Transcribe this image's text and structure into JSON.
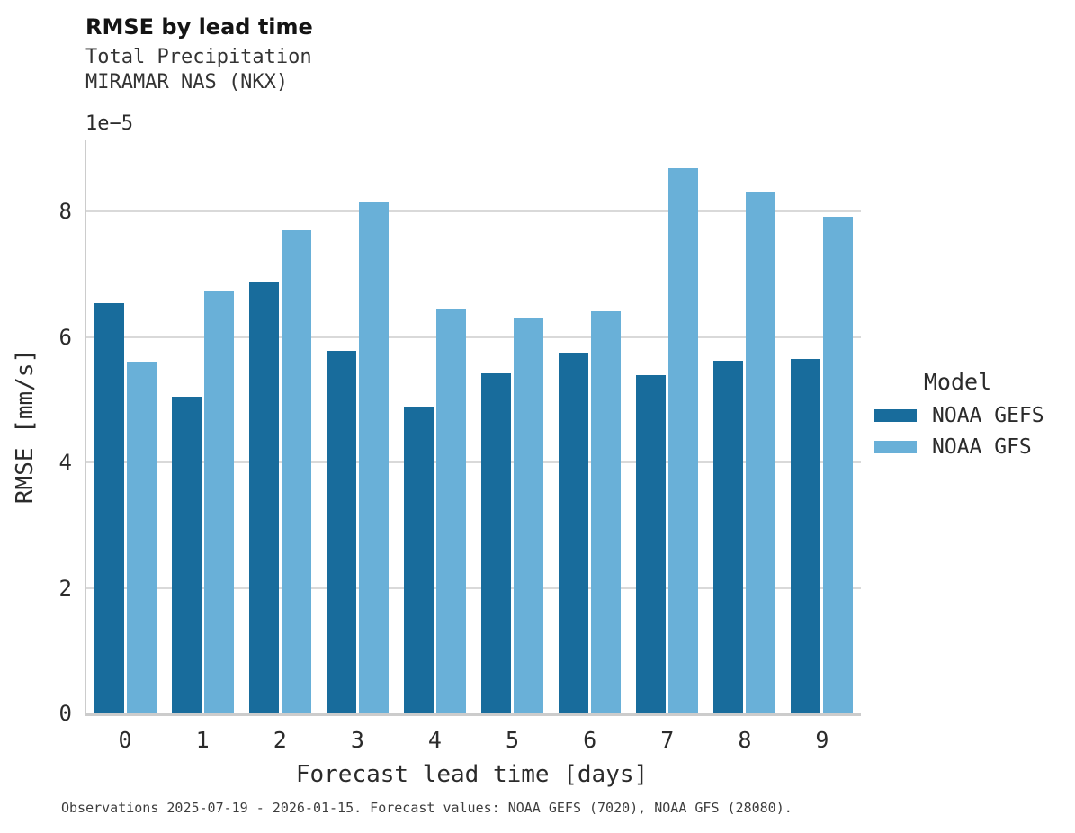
{
  "header": {
    "title": "RMSE by lead time",
    "subtitle_line1": "Total Precipitation",
    "subtitle_line2": "MIRAMAR NAS (NKX)"
  },
  "chart_data": {
    "type": "bar",
    "title": "RMSE by lead time",
    "subtitle": [
      "Total Precipitation",
      "MIRAMAR NAS (NKX)"
    ],
    "categories": [
      "0",
      "1",
      "2",
      "3",
      "4",
      "5",
      "6",
      "7",
      "8",
      "9"
    ],
    "series": [
      {
        "name": "NOAA GEFS",
        "color": "#186c9c",
        "values": [
          6.55,
          5.05,
          6.88,
          5.78,
          4.9,
          5.42,
          5.75,
          5.39,
          5.63,
          5.66
        ]
      },
      {
        "name": "NOAA GFS",
        "color": "#69b0d8",
        "values": [
          5.61,
          6.74,
          7.7,
          8.16,
          6.45,
          6.31,
          6.41,
          8.69,
          8.32,
          7.92
        ]
      }
    ],
    "value_scale_note": "values are in units of 1e-5 mm/s",
    "offset_text": "1e−5",
    "xlabel": "Forecast lead time [days]",
    "ylabel": "RMSE [mm/s]",
    "yticks": [
      0,
      2,
      4,
      6,
      8
    ],
    "ylim": [
      0,
      9.14
    ],
    "grid": "horizontal",
    "legend_position": "right"
  },
  "legend": {
    "title": "Model",
    "items": [
      {
        "label": "NOAA GEFS",
        "color": "#186c9c"
      },
      {
        "label": "NOAA GFS",
        "color": "#69b0d8"
      }
    ]
  },
  "footer": {
    "note": "Observations 2025-07-19 - 2026-01-15. Forecast values: NOAA GEFS (7020), NOAA GFS (28080)."
  },
  "colors": {
    "gefs_bar": "#186c9c",
    "gfs_bar": "#69b0d8",
    "gridline": "#d9d9d9",
    "axis_spine": "#cccccc",
    "title_text": "#141414",
    "body_text": "#2b2b2b"
  }
}
